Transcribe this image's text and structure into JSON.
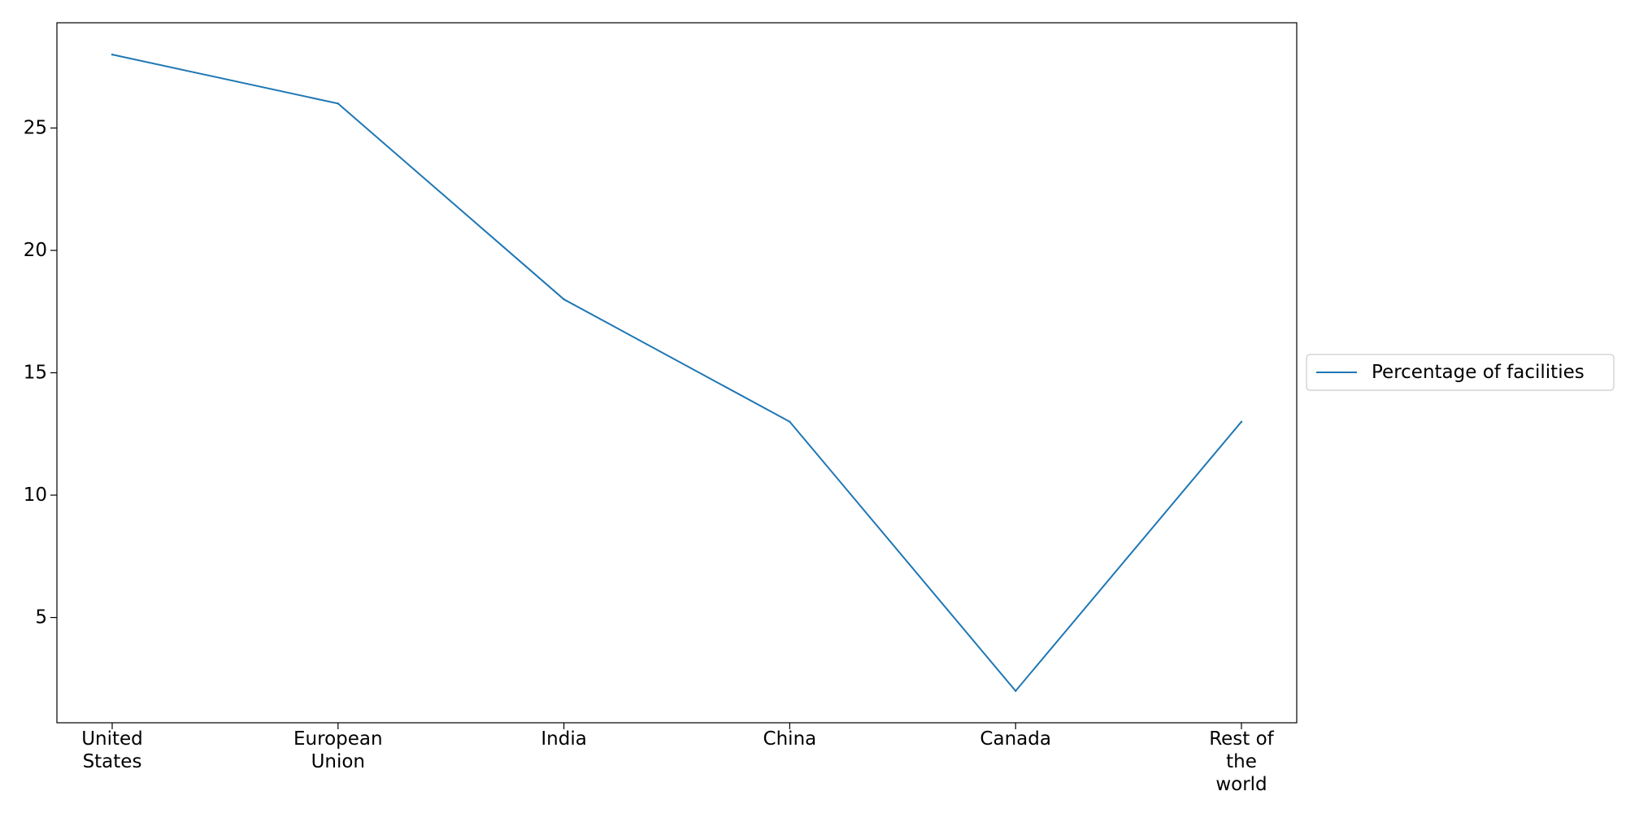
{
  "chart_data": {
    "type": "line",
    "title": "",
    "xlabel": "",
    "ylabel": "",
    "categories": [
      [
        "United",
        "States"
      ],
      [
        "European",
        "Union"
      ],
      [
        "India"
      ],
      [
        "China"
      ],
      [
        "Canada"
      ],
      [
        "Rest of",
        "the",
        "world"
      ]
    ],
    "series": [
      {
        "name": "Percentage of facilities",
        "values": [
          28,
          26,
          18,
          13,
          2,
          13
        ],
        "color": "#1f77b4"
      }
    ],
    "ylim": [
      0.7,
      29.3
    ],
    "yticks": [
      5,
      10,
      15,
      20,
      25
    ],
    "grid": false,
    "legend": {
      "placement": "right-center-outside",
      "entries": [
        "Percentage of facilities"
      ]
    }
  }
}
